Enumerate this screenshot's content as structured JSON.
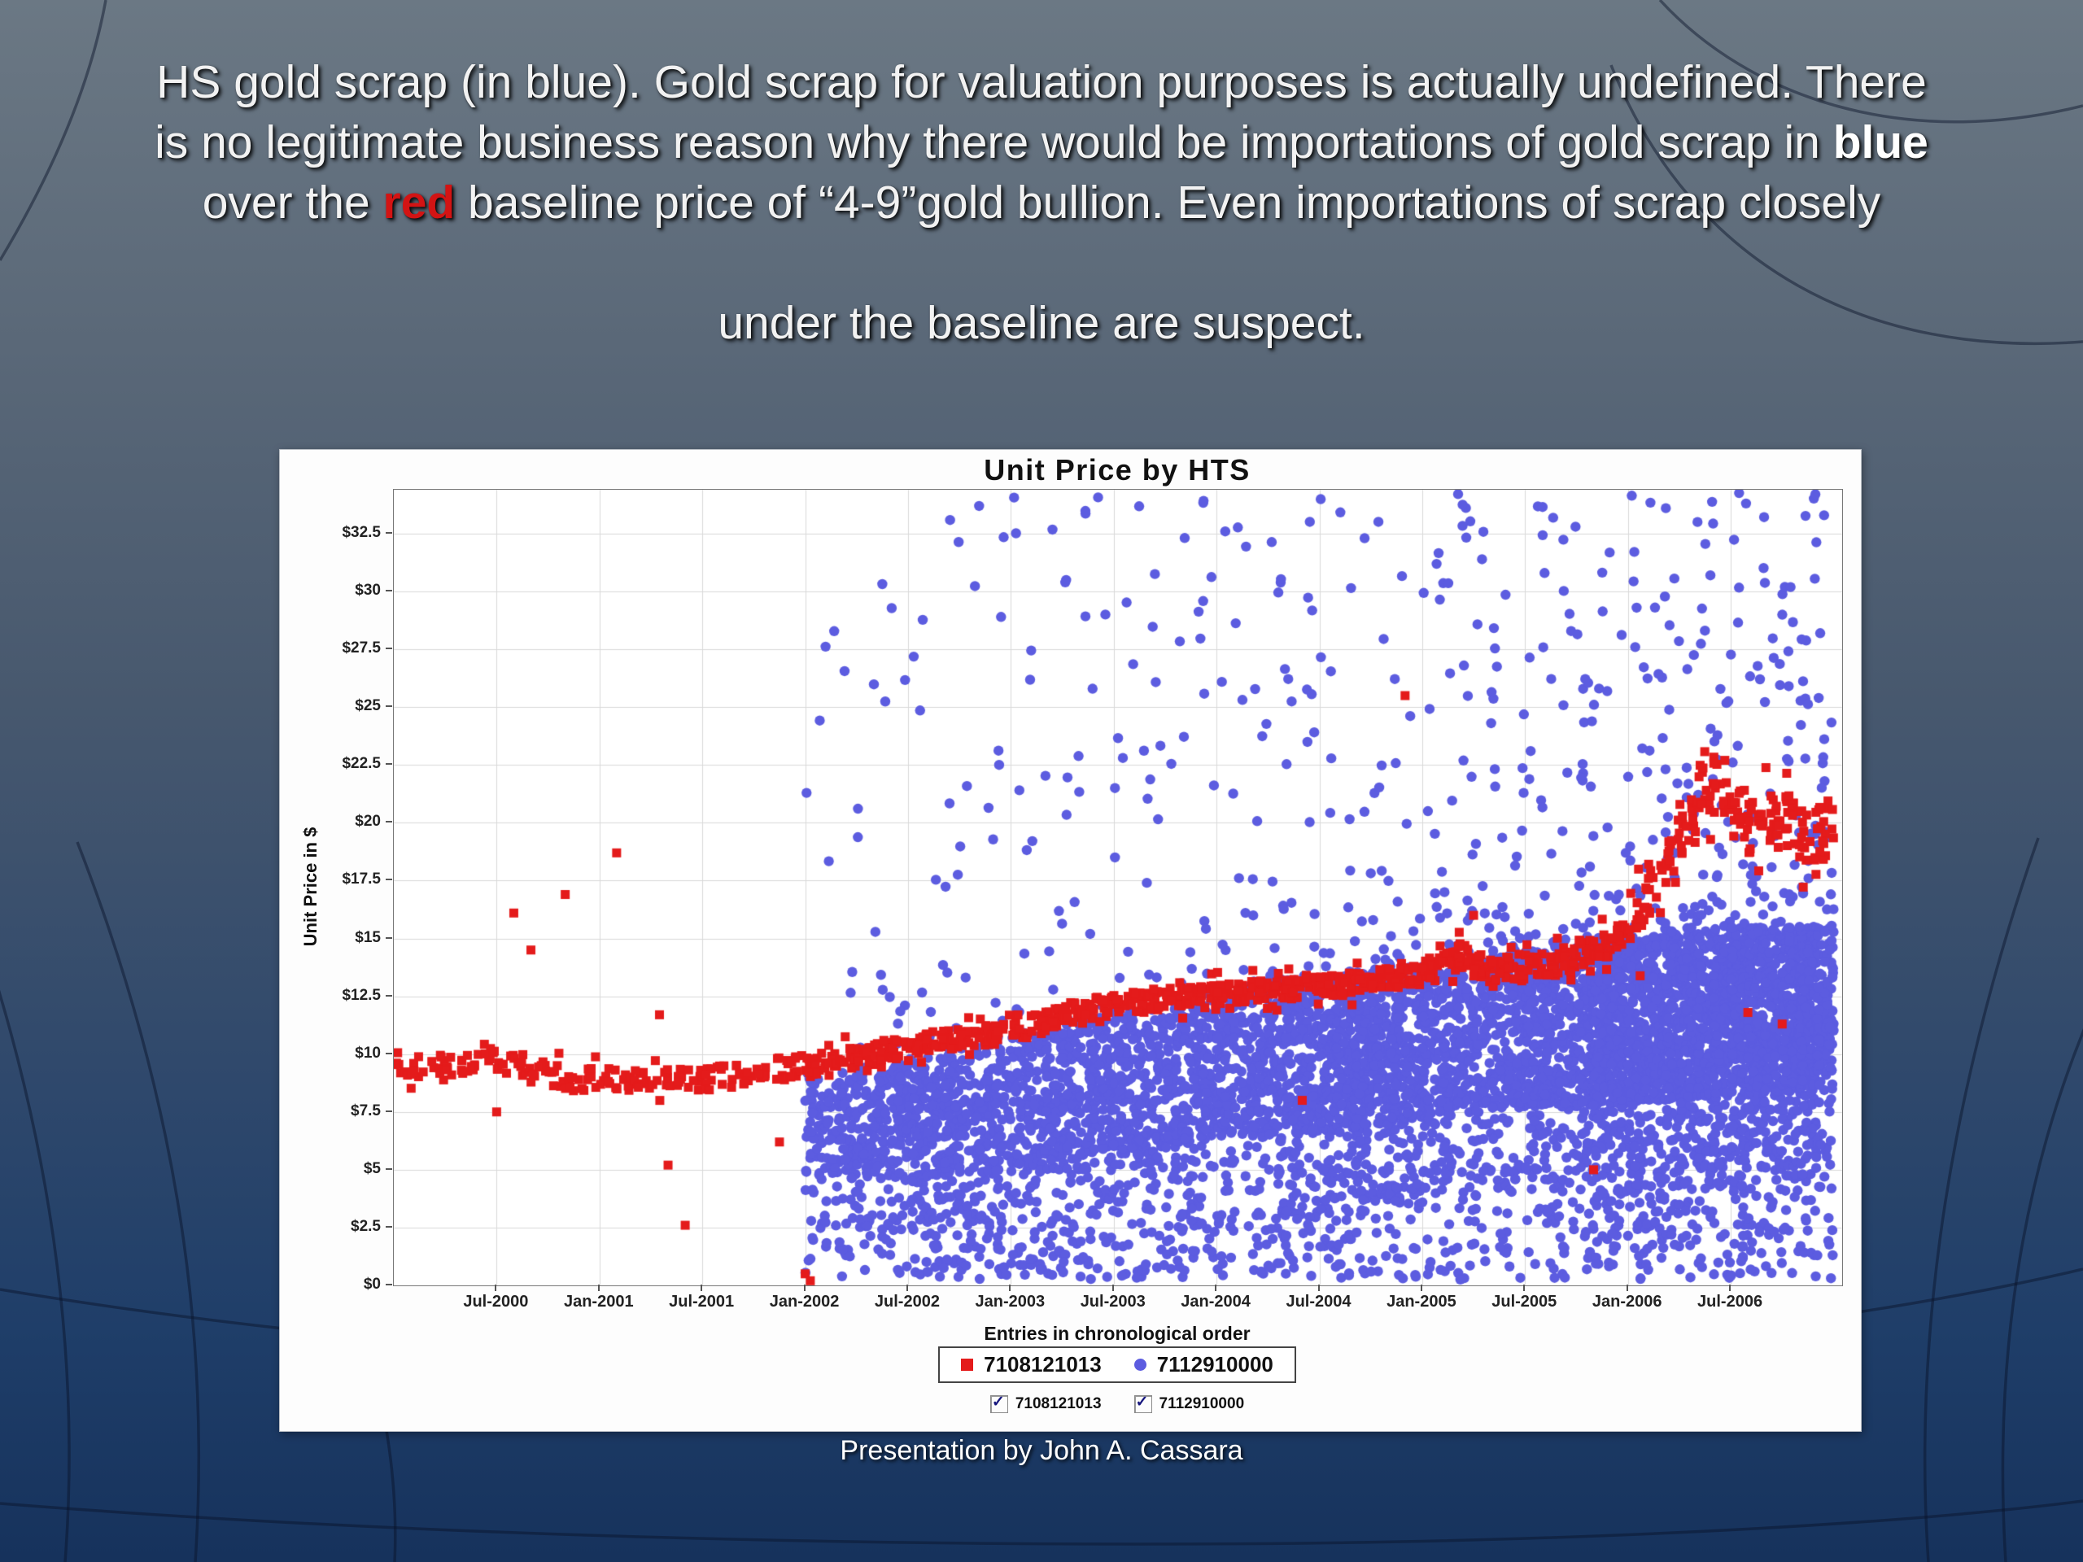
{
  "slide": {
    "footer": "Presentation by John A. Cassara"
  },
  "headline": {
    "lines": [
      [
        {
          "style": "n",
          "text": "HS gold scrap (in blue).  Gold scrap for valuation purposes is actually undefined. There"
        }
      ],
      [
        {
          "style": "n",
          "text": "is no legitimate business reason why there would be importations of gold scrap in "
        },
        {
          "style": "b",
          "text": "blue"
        }
      ],
      [
        {
          "style": "n",
          "text": "over the "
        },
        {
          "style": "br",
          "text": "red"
        },
        {
          "style": "n",
          "text": " baseline price of “4-9”gold bullion. Even importations of scrap closely"
        }
      ],
      [],
      [
        {
          "style": "n",
          "text": "under the baseline are suspect."
        }
      ]
    ]
  },
  "chart_data": {
    "type": "scatter",
    "title": "Unit Price by HTS",
    "xlabel": "Entries in chronological order",
    "ylabel": "Unit Price in $",
    "x_tick_labels": [
      "Jul-2000",
      "Jan-2001",
      "Jul-2001",
      "Jan-2002",
      "Jul-2002",
      "Jan-2003",
      "Jul-2003",
      "Jan-2004",
      "Jul-2004",
      "Jan-2005",
      "Jul-2005",
      "Jan-2006",
      "Jul-2006"
    ],
    "x_tick_months": [
      6,
      12,
      18,
      24,
      30,
      36,
      42,
      48,
      54,
      60,
      66,
      72,
      78
    ],
    "x_range_months": [
      0,
      84.5
    ],
    "y_ticks": [
      0,
      2.5,
      5,
      7.5,
      10,
      12.5,
      15,
      17.5,
      20,
      22.5,
      25,
      27.5,
      30,
      32.5
    ],
    "y_tick_labels": [
      "$0",
      "$2.5",
      "$5",
      "$7.5",
      "$10",
      "$12.5",
      "$15",
      "$17.5",
      "$20",
      "$22.5",
      "$25",
      "$27.5",
      "$30",
      "$32.5"
    ],
    "ylim": [
      0,
      34.4
    ],
    "grid": true,
    "grid_color": "#d9d9d9",
    "plot_bg": "#ffffff",
    "legend_position": "bottom",
    "series": [
      {
        "name": "7108121013",
        "marker": "square",
        "color": "#e41b1b",
        "role": "red baseline: 4-9 gold bullion unit price",
        "trend": [
          [
            0,
            9.5
          ],
          [
            6,
            9.6
          ],
          [
            10,
            9.0
          ],
          [
            14,
            8.8
          ],
          [
            18,
            8.9
          ],
          [
            22,
            9.3
          ],
          [
            24,
            9.5
          ],
          [
            28,
            10.0
          ],
          [
            32,
            10.6
          ],
          [
            36,
            10.9
          ],
          [
            40,
            11.9
          ],
          [
            44,
            12.3
          ],
          [
            48,
            12.6
          ],
          [
            52,
            12.8
          ],
          [
            56,
            13.1
          ],
          [
            60,
            13.4
          ],
          [
            62,
            14.4
          ],
          [
            64,
            13.7
          ],
          [
            68,
            13.9
          ],
          [
            72,
            15.2
          ],
          [
            74,
            17.8
          ],
          [
            76,
            20.5
          ],
          [
            77,
            22.3
          ],
          [
            78,
            21.0
          ],
          [
            79,
            19.6
          ],
          [
            81,
            20.3
          ],
          [
            83,
            19.2
          ],
          [
            84.5,
            20.4
          ]
        ],
        "outliers": [
          [
            6,
            7.5
          ],
          [
            7,
            16.1
          ],
          [
            8,
            14.5
          ],
          [
            10,
            16.9
          ],
          [
            13,
            18.7
          ],
          [
            15.5,
            11.7
          ],
          [
            16,
            5.2
          ],
          [
            17,
            2.6
          ],
          [
            22.5,
            6.2
          ],
          [
            24,
            0.5
          ],
          [
            24.3,
            0.2
          ],
          [
            53,
            8.0
          ],
          [
            59,
            25.5
          ],
          [
            63,
            16.0
          ],
          [
            70,
            5.0
          ],
          [
            79,
            11.8
          ],
          [
            81,
            11.3
          ]
        ]
      },
      {
        "name": "7112910000",
        "marker": "circle",
        "color": "#5c5ce0",
        "role": "blue: HS gold scrap unit price (starts Jan-2002)",
        "start_month": 24,
        "band_low": [
          [
            24,
            2.2
          ],
          [
            30,
            2.0
          ],
          [
            36,
            1.5
          ],
          [
            42,
            2.0
          ],
          [
            48,
            2.5
          ],
          [
            54,
            3.0
          ],
          [
            60,
            3.5
          ],
          [
            66,
            4.0
          ],
          [
            72,
            4.0
          ],
          [
            78,
            4.5
          ],
          [
            84.5,
            4.5
          ]
        ],
        "band_high": [
          [
            24,
            9.0
          ],
          [
            30,
            9.8
          ],
          [
            36,
            10.8
          ],
          [
            42,
            11.8
          ],
          [
            48,
            13.0
          ],
          [
            54,
            13.5
          ],
          [
            60,
            14.0
          ],
          [
            66,
            14.5
          ],
          [
            72,
            15.0
          ],
          [
            78,
            15.5
          ],
          [
            84.5,
            15.5
          ]
        ],
        "points_per_month": [
          [
            24,
            55
          ],
          [
            36,
            75
          ],
          [
            48,
            90
          ],
          [
            60,
            115
          ],
          [
            72,
            150
          ],
          [
            84.5,
            165
          ]
        ],
        "high_outlier_rate": [
          [
            24,
            5
          ],
          [
            36,
            6
          ],
          [
            48,
            7
          ],
          [
            60,
            10
          ],
          [
            72,
            13
          ],
          [
            84.5,
            15
          ]
        ]
      }
    ]
  },
  "checkboxes": [
    {
      "label": "7108121013",
      "checked": true
    },
    {
      "label": "7112910000",
      "checked": true
    }
  ]
}
